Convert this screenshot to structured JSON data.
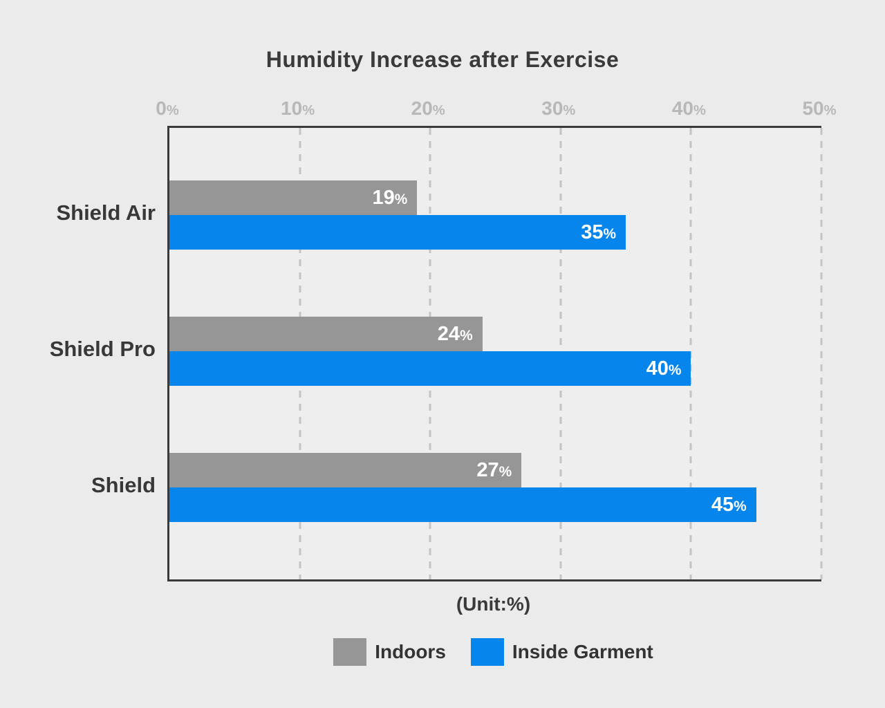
{
  "chart_data": {
    "type": "bar",
    "orientation": "horizontal",
    "title": "Humidity Increase after Exercise",
    "unit_label": "(Unit:%)",
    "categories": [
      "Shield Air",
      "Shield Pro",
      "Shield"
    ],
    "series": [
      {
        "name": "Indoors",
        "color": "#969696",
        "values": [
          19,
          24,
          27
        ]
      },
      {
        "name": "Inside Garment",
        "color": "#0685ed",
        "values": [
          35,
          40,
          45
        ]
      }
    ],
    "x_ticks": [
      "0%",
      "10%",
      "20%",
      "30%",
      "40%",
      "50%"
    ],
    "xlim": [
      0,
      50
    ],
    "value_suffix": "%",
    "grid": "dashed-vertical",
    "legend_position": "bottom",
    "axis_position": "top"
  },
  "colors": {
    "background": "#ebebeb",
    "plot_background": "#eeeeee",
    "plot_border": "#3a3a3a",
    "gridline": "#c4c4c4",
    "axis_tick_label": "#b8b8b8",
    "category_label": "#383838",
    "value_label": "#ffffff",
    "title": "#3a3a3a"
  }
}
